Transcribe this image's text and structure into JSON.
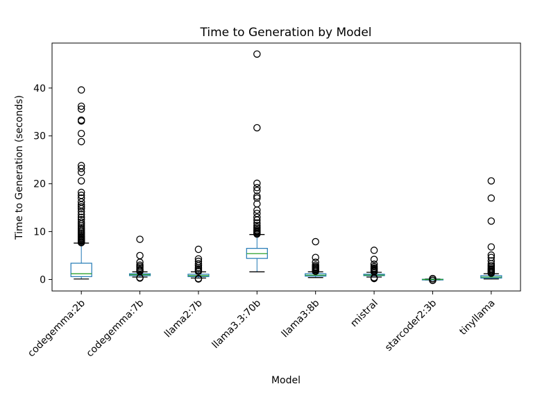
{
  "chart_data": {
    "type": "box",
    "title": "Time to Generation by Model",
    "xlabel": "Model",
    "ylabel": "Time to Generation (seconds)",
    "ylim": [
      -2.4,
      49.4
    ],
    "yticks": [
      0,
      10,
      20,
      30,
      40
    ],
    "grid": false,
    "legend": "none",
    "categories": [
      "codegemma:2b",
      "codegemma:7b",
      "llama2:7b",
      "llama3.3:70b",
      "llama3:8b",
      "mistral",
      "starcoder2:3b",
      "tinyllama"
    ],
    "boxes": [
      {
        "whisker_low": 0.1,
        "q1": 0.6,
        "median": 1.2,
        "q3": 3.4,
        "whisker_high": 7.6,
        "outliers": [
          7.7,
          7.8,
          8.0,
          8.2,
          8.4,
          8.6,
          8.8,
          9.0,
          9.3,
          9.6,
          9.9,
          10.2,
          10.5,
          10.8,
          11.2,
          11.6,
          12.0,
          12.5,
          13.0,
          13.6,
          14.2,
          14.8,
          15.2,
          15.6,
          16.2,
          17.0,
          17.6,
          18.2,
          20.6,
          22.4,
          23.2,
          23.8,
          28.8,
          30.5,
          33.1,
          33.3,
          35.6,
          36.2,
          39.6
        ]
      },
      {
        "whisker_low": 0.5,
        "q1": 0.8,
        "median": 1.0,
        "q3": 1.2,
        "whisker_high": 1.6,
        "outliers": [
          0.3,
          0.4,
          1.7,
          1.9,
          2.1,
          2.4,
          2.7,
          3.0,
          3.6,
          5.0,
          8.4
        ]
      },
      {
        "whisker_low": 0.3,
        "q1": 0.6,
        "median": 0.8,
        "q3": 1.1,
        "whisker_high": 1.6,
        "outliers": [
          0.1,
          0.2,
          1.7,
          1.9,
          2.2,
          2.5,
          2.9,
          3.3,
          3.8,
          4.3,
          6.3
        ]
      },
      {
        "whisker_low": 1.6,
        "q1": 4.4,
        "median": 5.4,
        "q3": 6.5,
        "whisker_high": 9.4,
        "outliers": [
          9.5,
          9.7,
          9.9,
          10.1,
          10.3,
          10.6,
          10.9,
          11.3,
          11.8,
          12.4,
          13.0,
          13.8,
          14.5,
          15.8,
          17.0,
          17.4,
          18.6,
          19.2,
          20.1,
          31.7,
          47.1
        ]
      },
      {
        "whisker_low": 0.4,
        "q1": 0.7,
        "median": 0.9,
        "q3": 1.2,
        "whisker_high": 1.6,
        "outliers": [
          1.7,
          1.9,
          2.1,
          2.3,
          2.5,
          2.7,
          3.0,
          3.6,
          4.6,
          7.9
        ]
      },
      {
        "whisker_low": 0.5,
        "q1": 0.8,
        "median": 0.9,
        "q3": 1.1,
        "whisker_high": 1.5,
        "outliers": [
          0.2,
          0.3,
          0.4,
          1.6,
          1.8,
          2.0,
          2.2,
          2.4,
          2.7,
          3.2,
          4.2,
          6.1
        ]
      },
      {
        "whisker_low": -0.1,
        "q1": -0.05,
        "median": 0.0,
        "q3": 0.05,
        "whisker_high": 0.1,
        "outliers": [
          -0.2,
          -0.15,
          0.15,
          0.2
        ]
      },
      {
        "whisker_low": 0.1,
        "q1": 0.3,
        "median": 0.5,
        "q3": 0.8,
        "whisker_high": 1.2,
        "outliers": [
          1.3,
          1.5,
          1.7,
          1.9,
          2.1,
          2.3,
          2.6,
          2.9,
          3.3,
          3.9,
          4.6,
          5.1,
          6.8,
          12.2,
          17.0,
          20.6
        ]
      }
    ],
    "colors": {
      "box": "#1f77b4",
      "median": "#2ca02c",
      "whisker": "#000000",
      "outlier": "#000000"
    }
  }
}
